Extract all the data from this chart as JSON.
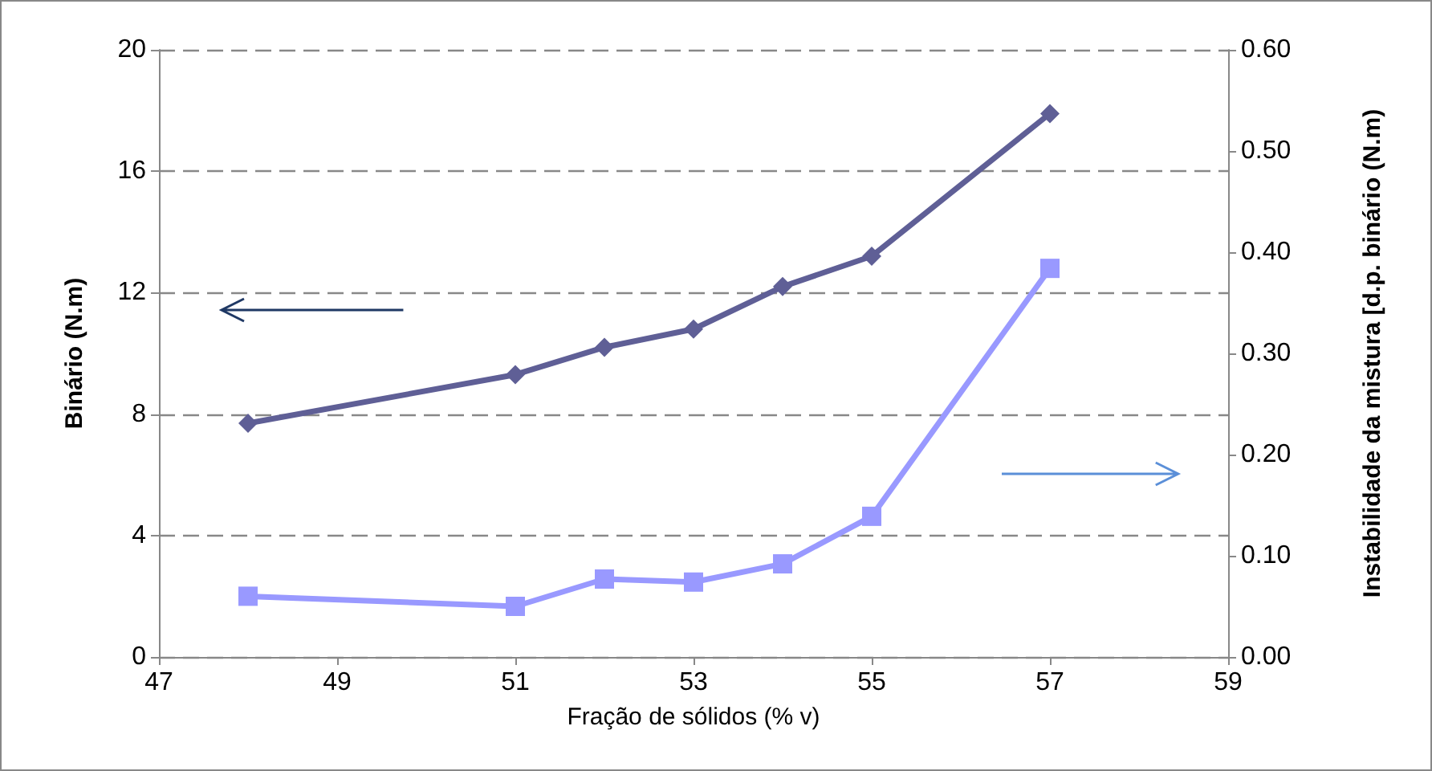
{
  "chart_data": {
    "type": "line",
    "xlabel": "Fração de sólidos (% v)",
    "ylabel": "Binário (N.m)",
    "y2label": "Instabilidade da mistura [d.p. binário (N.m)",
    "x": [
      48,
      51,
      52,
      53,
      54,
      55,
      57
    ],
    "series": [
      {
        "color": "#5f5f96",
        "marker": "diamond",
        "values": [
          7.7,
          9.3,
          10.2,
          10.8,
          12.2,
          13.2,
          17.9
        ]
      },
      {
        "color": "#9999ff",
        "marker": "square",
        "axis": "y2",
        "values": [
          0.06,
          0.05,
          0.077,
          0.074,
          0.092,
          0.139,
          0.384
        ]
      }
    ],
    "xlim": [
      47,
      59
    ],
    "xticks": [
      47,
      49,
      51,
      53,
      55,
      57,
      59
    ],
    "ylim": [
      0,
      20
    ],
    "yticks": [
      0,
      4,
      8,
      12,
      16,
      20
    ],
    "y2lim": [
      0,
      0.6
    ],
    "y2ticks": [
      {
        "value": 0,
        "label": "0.00"
      },
      {
        "value": 0.1,
        "label": "0.10"
      },
      {
        "value": 0.2,
        "label": "0.20"
      },
      {
        "value": 0.3,
        "label": "0.30"
      },
      {
        "value": 0.4,
        "label": "0.40"
      },
      {
        "value": 0.5,
        "label": "0.50"
      },
      {
        "value": 0.6,
        "label": "0.60"
      }
    ],
    "grid": "y",
    "line_style": "solid"
  }
}
